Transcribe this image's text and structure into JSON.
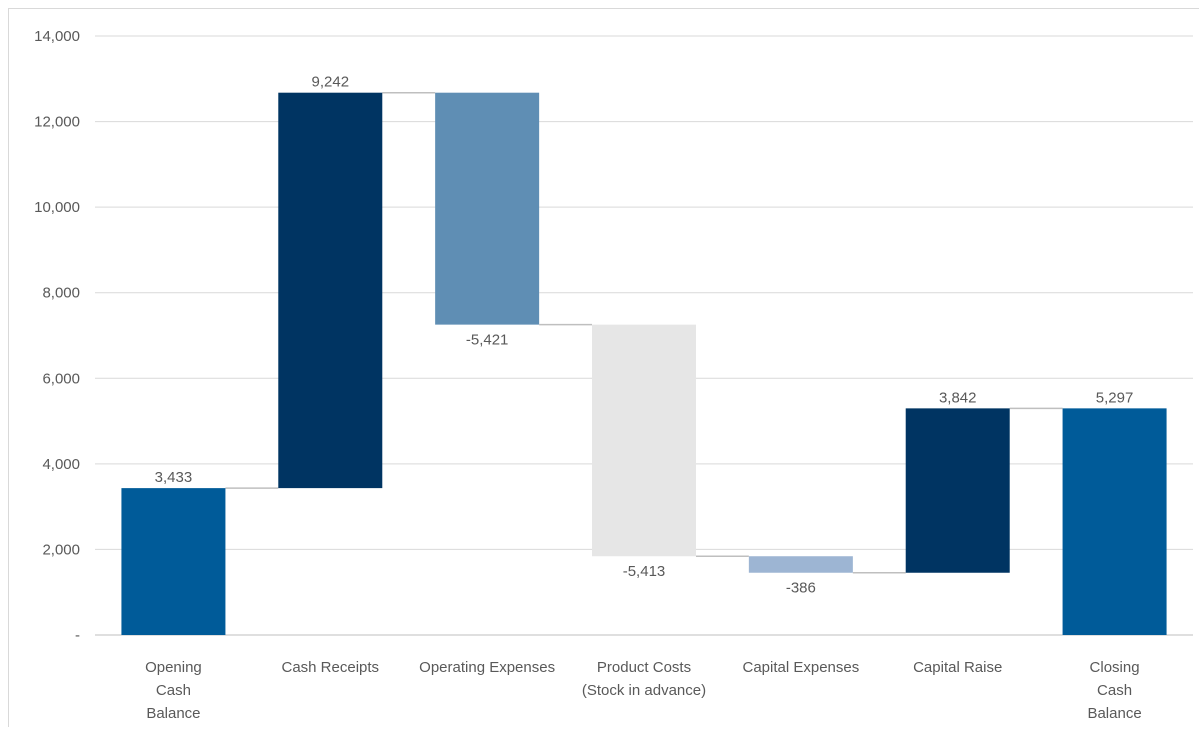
{
  "chart_data": {
    "type": "waterfall",
    "categories": [
      [
        "Opening",
        "Cash",
        "Balance"
      ],
      [
        "Cash Receipts"
      ],
      [
        "Operating Expenses"
      ],
      [
        "Product Costs",
        "(Stock in advance)"
      ],
      [
        "Capital Expenses"
      ],
      [
        "Capital Raise"
      ],
      [
        "Closing",
        "Cash",
        "Balance"
      ]
    ],
    "steps": [
      {
        "kind": "total",
        "value": 3433,
        "label": "3,433",
        "color": "#005b99"
      },
      {
        "kind": "delta",
        "value": 9242,
        "label": "9,242",
        "color": "#003462"
      },
      {
        "kind": "delta",
        "value": -5421,
        "label": "-5,421",
        "color": "#5f8eb4"
      },
      {
        "kind": "delta",
        "value": -5413,
        "label": "-5,413",
        "color": "#e6e6e6"
      },
      {
        "kind": "delta",
        "value": -386,
        "label": "-386",
        "color": "#9db5d3"
      },
      {
        "kind": "delta",
        "value": 3842,
        "label": "3,842",
        "color": "#003462"
      },
      {
        "kind": "total",
        "value": 5297,
        "label": "5,297",
        "color": "#005b99"
      }
    ],
    "y_ticks": [
      "-",
      "2,000",
      "4,000",
      "6,000",
      "8,000",
      "10,000",
      "12,000",
      "14,000"
    ],
    "ylim": [
      0,
      14000
    ],
    "grid": true,
    "connector_color": "#bfbfbf"
  }
}
